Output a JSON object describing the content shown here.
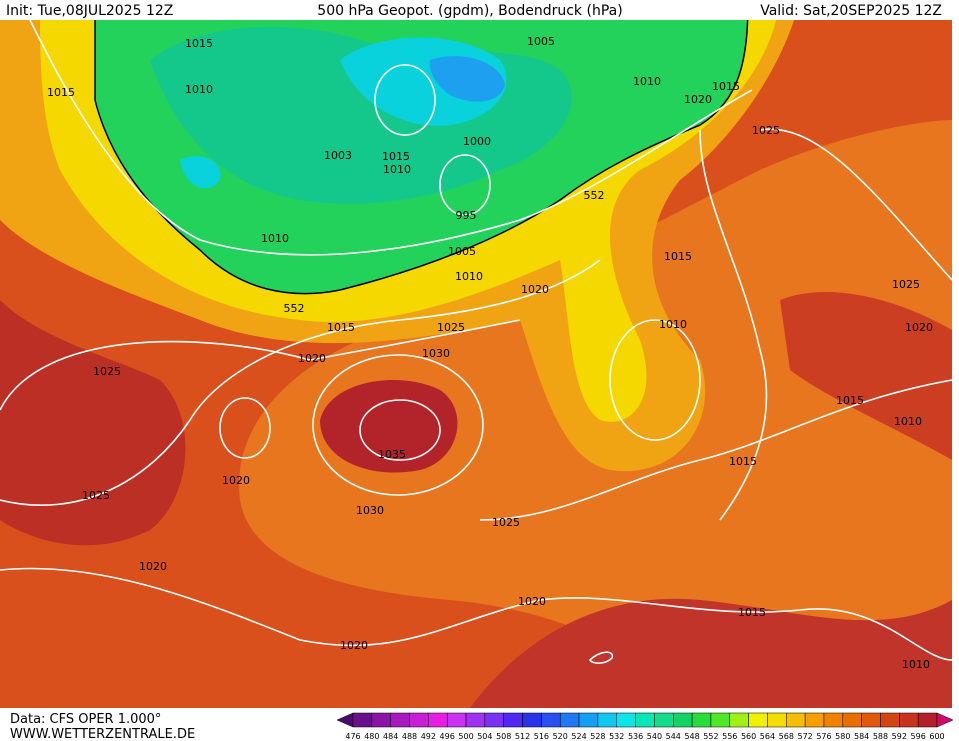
{
  "header": {
    "init": "Init: Tue,08JUL2025 12Z",
    "title": "500 hPa Geopot. (gpdm), Bodendruck (hPa)",
    "valid": "Valid: Sat,20SEP2025 12Z"
  },
  "isobar_labels": [
    1015,
    1005,
    1015,
    1010,
    1010,
    1015,
    1020,
    1025,
    1000,
    1003,
    1015,
    1010,
    995,
    552,
    1010,
    1005,
    1010,
    1015,
    1020,
    1025,
    552,
    1015,
    1025,
    1010,
    1020,
    1030,
    1020,
    1025,
    1015,
    1010,
    1035,
    1015,
    1020,
    1025,
    1030,
    1025,
    1020,
    1020,
    1015,
    1020,
    1010
  ],
  "footer": {
    "data_source": "Data: CFS OPER 1.000°",
    "website": "WWW.WETTERZENTRALE.DE"
  },
  "color_scale": {
    "labels": [
      476,
      480,
      484,
      488,
      492,
      496,
      500,
      504,
      508,
      512,
      516,
      520,
      524,
      528,
      532,
      536,
      540,
      544,
      548,
      552,
      556,
      560,
      564,
      568,
      572,
      576,
      580,
      584,
      588,
      592,
      596,
      600
    ],
    "colors": [
      "#4b0a6e",
      "#6a0f8c",
      "#8a14a8",
      "#a819c0",
      "#c81ed6",
      "#e61ee6",
      "#c832f0",
      "#a032f0",
      "#7832f0",
      "#5028f0",
      "#2832e6",
      "#2850f0",
      "#1e78f0",
      "#14a0f0",
      "#0fc8f0",
      "#0ae6e6",
      "#0ae6b4",
      "#14dc8c",
      "#14d264",
      "#28dc3c",
      "#50e628",
      "#a0f014",
      "#f0f000",
      "#f5dc00",
      "#f5be00",
      "#f5a000",
      "#f08200",
      "#eb6e00",
      "#e15a0a",
      "#d24614",
      "#c8321e",
      "#b41e28",
      "#a01432",
      "#d20a6e"
    ]
  }
}
